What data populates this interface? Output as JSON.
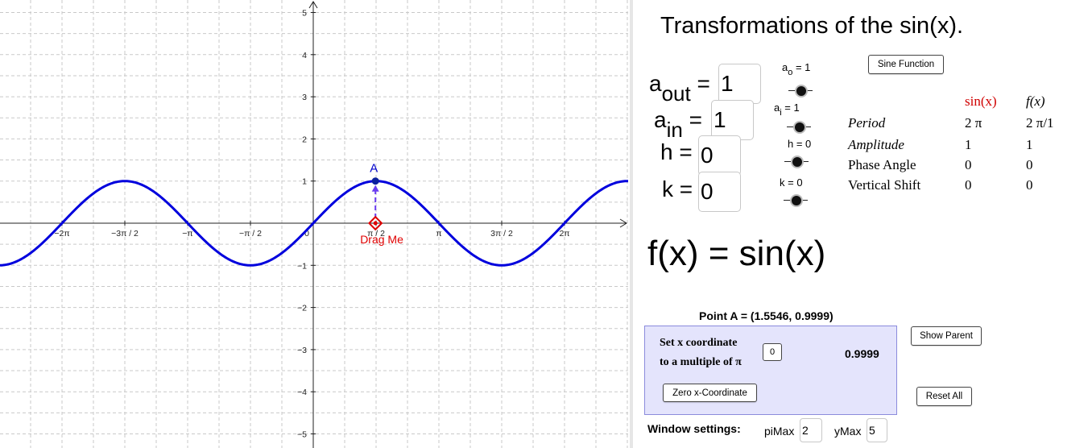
{
  "graph": {
    "x_ticks": [
      "−2π",
      "−3π / 2",
      "−π",
      "−π / 2",
      "0",
      "π / 2",
      "π",
      "3π / 2",
      "2π"
    ],
    "y_ticks": [
      "5",
      "4",
      "3",
      "2",
      "1",
      "−1",
      "−2",
      "−3",
      "−4",
      "−5"
    ],
    "x_range_pi": [
      -2.5,
      2.5
    ],
    "y_range": [
      -5,
      5
    ],
    "curve": "sin(x)",
    "curve_color": "#0000dd",
    "point_a_label": "A",
    "point_a": [
      1.5546,
      0.9999
    ],
    "drag_point_x": 1.5546,
    "drag_label": "Drag Me",
    "drag_color": "#e00000",
    "grid": true
  },
  "panel": {
    "title": "Transformations of the sin(x).",
    "sine_button": "Sine Function",
    "vars": {
      "aout": {
        "base": "a",
        "sub": "out",
        "eq": " =",
        "value": "1"
      },
      "ain": {
        "base": "a",
        "sub": "in",
        "eq": " =",
        "value": "1"
      },
      "h": {
        "label": "h =",
        "value": "0"
      },
      "k": {
        "label": "k =",
        "value": "0"
      }
    },
    "sliders": {
      "ao": {
        "base": "a",
        "sub": "o",
        "rest": " = 1",
        "value": 1
      },
      "ai": {
        "base": "a",
        "sub": "i",
        "rest": " = 1",
        "value": 1
      },
      "h": {
        "label": "h = 0",
        "value": 0
      },
      "k": {
        "label": "k = 0",
        "value": 0
      }
    },
    "table": {
      "col_sin": "sin(x)",
      "col_f": "f(x)",
      "rows": [
        {
          "label": "Period",
          "sin": "2 π",
          "f": "2 π/1"
        },
        {
          "label": "Amplitude",
          "sin": "1",
          "f": "1"
        },
        {
          "label": "Phase Angle",
          "sin": "0",
          "f": "0"
        },
        {
          "label": "Vertical Shift",
          "sin": "0",
          "f": "0"
        }
      ]
    },
    "fx": "f(x) = sin(x)",
    "point_a": "Point A = (1.5546, 0.9999)",
    "set_x_line1": "Set x coordinate",
    "set_x_line2": "to a multiple of π",
    "multiple_value": "0",
    "y_value": "0.9999",
    "zero_button": "Zero x-Coordinate",
    "show_parent": "Show Parent",
    "reset_all": "Reset All",
    "window_label": "Window settings:",
    "pimax_label": "piMax",
    "pimax_value": "2",
    "ymax_label": "yMax",
    "ymax_value": "5"
  }
}
